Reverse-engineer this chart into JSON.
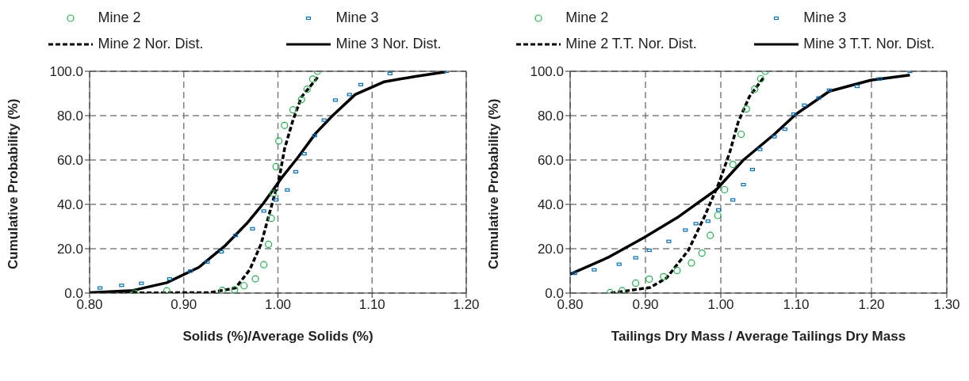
{
  "chart_data": [
    {
      "type": "scatter",
      "xlabel": "Solids (%)/Average Solids (%)",
      "ylabel": "Cumulative Probability (%)",
      "xlim": [
        0.8,
        1.2
      ],
      "xticks": [
        {
          "value": 0.8,
          "label": "0.80"
        },
        {
          "value": 0.9,
          "label": "0.90"
        },
        {
          "value": 1.0,
          "label": "1.00"
        },
        {
          "value": 1.1,
          "label": "1.10"
        },
        {
          "value": 1.2,
          "label": "1.20"
        }
      ],
      "ylim": [
        0,
        100
      ],
      "yticks": [
        {
          "value": 0,
          "label": "0.0"
        },
        {
          "value": 20,
          "label": "20.0"
        },
        {
          "value": 40,
          "label": "40.0"
        },
        {
          "value": 60,
          "label": "60.0"
        },
        {
          "value": 80,
          "label": "80.0"
        },
        {
          "value": 100,
          "label": "100.0"
        }
      ],
      "grid": true,
      "legend": "top",
      "series": [
        {
          "name": "Mine 2",
          "marker": "circle",
          "color": "#22b14c",
          "x": [
            0.848,
            0.882,
            0.941,
            0.954,
            0.964,
            0.976,
            0.985,
            0.99,
            0.993,
            0.995,
            0.998,
            1.001,
            1.007,
            1.016,
            1.025,
            1.031,
            1.037,
            1.042
          ],
          "values": [
            0,
            1,
            1.2,
            1.5,
            3.3,
            6.4,
            12.8,
            22,
            33.7,
            45,
            57,
            68.6,
            75.6,
            82.6,
            87.2,
            91.9,
            96.5,
            100
          ]
        },
        {
          "name": "Mine 3",
          "marker": "square",
          "color": "#0070c0",
          "x": [
            0.811,
            0.834,
            0.855,
            0.885,
            0.907,
            0.925,
            0.94,
            0.955,
            0.973,
            0.985,
            0.998,
            1.01,
            1.019,
            1.028,
            1.039,
            1.049,
            1.061,
            1.076,
            1.088,
            1.119,
            1.179
          ],
          "values": [
            2.3,
            3.5,
            4.4,
            6.4,
            9.9,
            14,
            18.6,
            26,
            29,
            37,
            42,
            46.5,
            54.7,
            62.8,
            71,
            78,
            87,
            89.5,
            94,
            99,
            100
          ]
        },
        {
          "name": "Mine 2 Nor. Dist.",
          "type": "line",
          "marker": "none",
          "line_style": "dashed",
          "color": "#000000",
          "x": [
            0.8,
            0.928,
            0.955,
            0.97,
            0.982,
            0.991,
            1.001,
            1.007,
            1.016,
            1.025,
            1.043
          ],
          "values": [
            0,
            0.2,
            2.3,
            10.5,
            22,
            36,
            51,
            65,
            78,
            88.4,
            97.7
          ]
        },
        {
          "name": "Mine 3 Nor. Dist.",
          "type": "line",
          "marker": "none",
          "line_style": "solid",
          "color": "#000000",
          "x": [
            0.8,
            0.846,
            0.882,
            0.916,
            0.943,
            0.967,
            0.985,
            1.004,
            1.022,
            1.04,
            1.058,
            1.082,
            1.113,
            1.146,
            1.178
          ],
          "values": [
            0.2,
            1.2,
            4.7,
            11.6,
            21,
            31.4,
            40.7,
            52,
            61.6,
            72,
            80,
            89.5,
            95.3,
            97.7,
            99.7
          ]
        }
      ]
    },
    {
      "type": "scatter",
      "xlabel": "Tailings Dry Mass / Average Tailings Dry Mass",
      "ylabel": "Cumulative Probability (%)",
      "xlim": [
        0.8,
        1.3
      ],
      "xticks": [
        {
          "value": 0.8,
          "label": "0.80"
        },
        {
          "value": 0.9,
          "label": "0.90"
        },
        {
          "value": 1.0,
          "label": "1.00"
        },
        {
          "value": 1.1,
          "label": "1.10"
        },
        {
          "value": 1.2,
          "label": "1.20"
        },
        {
          "value": 1.3,
          "label": "1.30"
        }
      ],
      "ylim": [
        0,
        100
      ],
      "yticks": [
        {
          "value": 0,
          "label": "0.0"
        },
        {
          "value": 20,
          "label": "20.0"
        },
        {
          "value": 40,
          "label": "40.0"
        },
        {
          "value": 60,
          "label": "60.0"
        },
        {
          "value": 80,
          "label": "80.0"
        },
        {
          "value": 100,
          "label": "100.0"
        }
      ],
      "grid": true,
      "legend": "top",
      "series": [
        {
          "name": "Mine 2",
          "marker": "circle",
          "color": "#22b14c",
          "x": [
            0.853,
            0.869,
            0.887,
            0.905,
            0.924,
            0.942,
            0.961,
            0.975,
            0.986,
            0.996,
            1.005,
            1.016,
            1.027,
            1.034,
            1.045,
            1.053,
            1.059
          ],
          "values": [
            0.2,
            1.1,
            4.5,
            6.3,
            7.4,
            10.2,
            13.6,
            18,
            26,
            35,
            46.6,
            58,
            71.6,
            83,
            92,
            96.6,
            100
          ]
        },
        {
          "name": "Mine 3",
          "marker": "square",
          "color": "#0070c0",
          "x": [
            0.806,
            0.832,
            0.865,
            0.887,
            0.905,
            0.931,
            0.953,
            0.967,
            0.983,
            0.997,
            1.016,
            1.03,
            1.042,
            1.052,
            1.071,
            1.085,
            1.097,
            1.111,
            1.13,
            1.144,
            1.181,
            1.211,
            1.251
          ],
          "values": [
            8.9,
            10.5,
            13,
            15.9,
            19.3,
            23.3,
            28.4,
            31.3,
            32.4,
            37.5,
            42,
            48.9,
            55.7,
            64.8,
            70.5,
            73.9,
            80.7,
            84.7,
            88,
            91.5,
            93.2,
            96.6,
            100
          ]
        },
        {
          "name": "Mine 2 T.T. Nor. Dist.",
          "type": "line",
          "marker": "none",
          "line_style": "dashed",
          "color": "#000000",
          "x": [
            0.854,
            0.906,
            0.928,
            0.957,
            0.979,
            0.998,
            1.012,
            1.023,
            1.038,
            1.058
          ],
          "values": [
            0,
            2.5,
            6.8,
            19.3,
            35,
            50,
            63.6,
            77,
            88.6,
            97.7
          ]
        },
        {
          "name": "Mine 3 T.T. Nor. Dist.",
          "type": "line",
          "marker": "none",
          "line_style": "solid",
          "color": "#000000",
          "x": [
            0.8,
            0.85,
            0.898,
            0.942,
            0.994,
            1.03,
            1.071,
            1.1,
            1.144,
            1.199,
            1.251
          ],
          "values": [
            8.5,
            16,
            25,
            34,
            46.6,
            60,
            71.6,
            80.7,
            91,
            96,
            98.3
          ]
        }
      ]
    }
  ]
}
